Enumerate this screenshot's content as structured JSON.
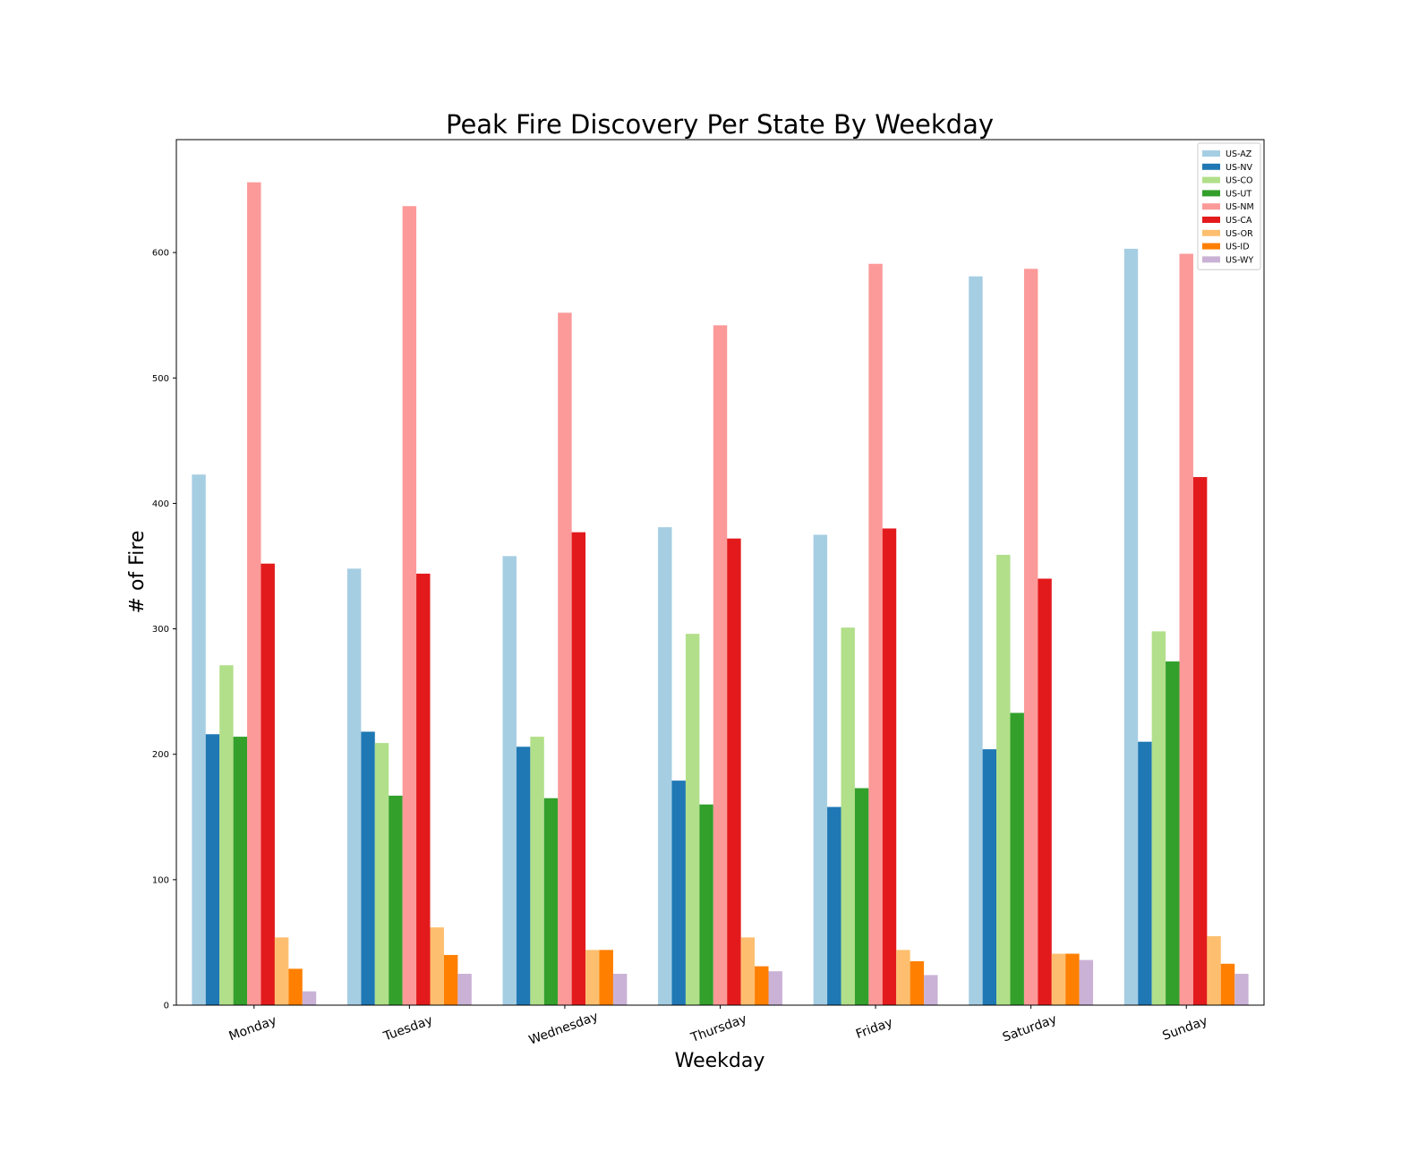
{
  "chart_data": {
    "type": "bar",
    "title": "Peak Fire Discovery Per State By Weekday",
    "xlabel": "Weekday",
    "ylabel": "# of Fire",
    "ylim": [
      0,
      690
    ],
    "yticks": [
      0,
      100,
      200,
      300,
      400,
      500,
      600
    ],
    "grid": false,
    "legend_position": "top-right",
    "categories": [
      "Monday",
      "Tuesday",
      "Wednesday",
      "Thursday",
      "Friday",
      "Saturday",
      "Sunday"
    ],
    "series": [
      {
        "name": "US-AZ",
        "color": "#a6cee3",
        "values": [
          423,
          348,
          358,
          381,
          375,
          581,
          603
        ]
      },
      {
        "name": "US-NV",
        "color": "#1f78b4",
        "values": [
          216,
          218,
          206,
          179,
          158,
          204,
          210
        ]
      },
      {
        "name": "US-CO",
        "color": "#b2df8a",
        "values": [
          271,
          209,
          214,
          296,
          301,
          359,
          298
        ]
      },
      {
        "name": "US-UT",
        "color": "#33a02c",
        "values": [
          214,
          167,
          165,
          160,
          173,
          233,
          274
        ]
      },
      {
        "name": "US-NM",
        "color": "#fb9a99",
        "values": [
          656,
          637,
          552,
          542,
          591,
          587,
          599
        ]
      },
      {
        "name": "US-CA",
        "color": "#e31a1c",
        "values": [
          352,
          344,
          377,
          372,
          380,
          340,
          421
        ]
      },
      {
        "name": "US-OR",
        "color": "#fdbf6f",
        "values": [
          54,
          62,
          44,
          54,
          44,
          41,
          55
        ]
      },
      {
        "name": "US-ID",
        "color": "#ff7f00",
        "values": [
          29,
          40,
          44,
          31,
          35,
          41,
          33
        ]
      },
      {
        "name": "US-WY",
        "color": "#cab2d6",
        "values": [
          11,
          25,
          25,
          27,
          24,
          36,
          25
        ]
      }
    ]
  }
}
